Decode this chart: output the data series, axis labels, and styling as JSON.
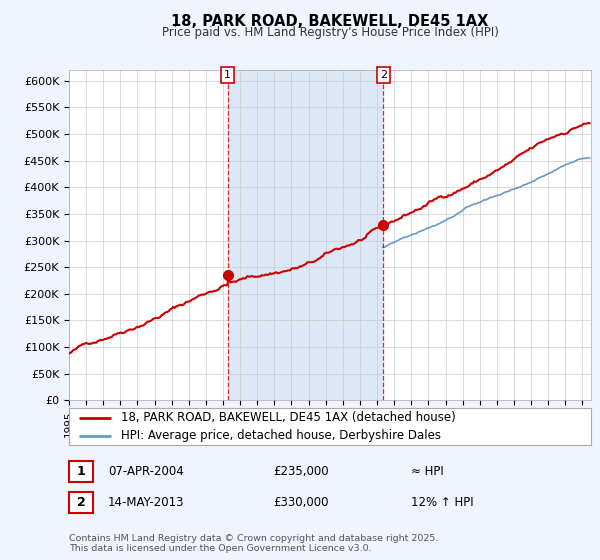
{
  "title": "18, PARK ROAD, BAKEWELL, DE45 1AX",
  "subtitle": "Price paid vs. HM Land Registry's House Price Index (HPI)",
  "ylim": [
    0,
    620000
  ],
  "yticks": [
    0,
    50000,
    100000,
    150000,
    200000,
    250000,
    300000,
    350000,
    400000,
    450000,
    500000,
    550000,
    600000
  ],
  "ytick_labels": [
    "£0",
    "£50K",
    "£100K",
    "£150K",
    "£200K",
    "£250K",
    "£300K",
    "£350K",
    "£400K",
    "£450K",
    "£500K",
    "£550K",
    "£600K"
  ],
  "hpi_color": "#6699cc",
  "price_color": "#cc0000",
  "marker_color": "#cc0000",
  "vline1_color": "#cc0000",
  "vline2_color": "#cc0000",
  "bg_color": "#f0f4ff",
  "plot_bg": "#ffffff",
  "grid_color": "#cccccc",
  "shade_color": "#dce8f5",
  "event1_date_num": 2004.27,
  "event1_price": 235000,
  "event2_date_num": 2013.37,
  "event2_price": 330000,
  "xmin": 1995.0,
  "xmax": 2025.5,
  "hpi_start_date": 2013.3,
  "footnote": "Contains HM Land Registry data © Crown copyright and database right 2025.\nThis data is licensed under the Open Government Licence v3.0.",
  "legend_line1": "18, PARK ROAD, BAKEWELL, DE45 1AX (detached house)",
  "legend_line2": "HPI: Average price, detached house, Derbyshire Dales",
  "table_row1_num": "1",
  "table_row1_date": "07-APR-2004",
  "table_row1_price": "£235,000",
  "table_row1_change": "≈ HPI",
  "table_row2_num": "2",
  "table_row2_date": "14-MAY-2013",
  "table_row2_price": "£330,000",
  "table_row2_change": "12% ↑ HPI"
}
